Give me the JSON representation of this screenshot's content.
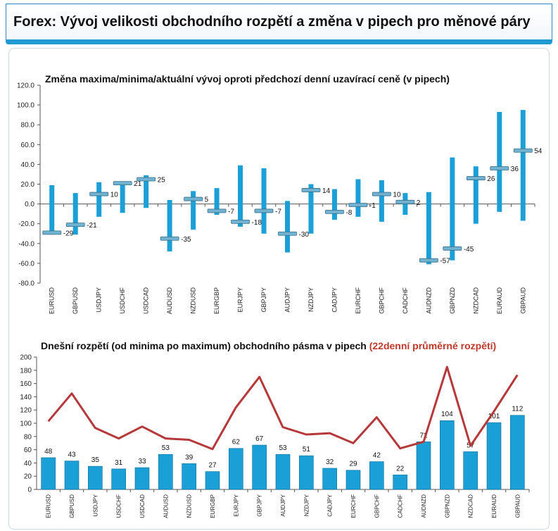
{
  "header": {
    "title": "Forex: Vývoj velikosti obchodního rozpětí a změna v pipech pro měnové páry"
  },
  "colors": {
    "accent": "#1f9bd2",
    "bar": "#1a9fd6",
    "line": "#b5393a"
  },
  "chart_data": [
    {
      "type": "bar",
      "title": "Změna maxima/minima/aktuální vývoj oproti předchozí denní uzavírací ceně (v pipech)",
      "categories": [
        "EURUSD",
        "GBPUSD",
        "USDJPY",
        "USDCHF",
        "USDCAD",
        "AUDUSD",
        "NZDUSD",
        "EURGBP",
        "EURJPY",
        "GBPJPY",
        "AUDJPY",
        "NZDJPY",
        "CADJPY",
        "EURCHF",
        "GBPCHF",
        "CADCHF",
        "AUDNZD",
        "GBPNZD",
        "NZDCAD",
        "EURAUD",
        "GBPAUD"
      ],
      "high": [
        19,
        11,
        22,
        22,
        29,
        4,
        13,
        16,
        39,
        36,
        3,
        20,
        15,
        25,
        24,
        11,
        12,
        47,
        38,
        93,
        95
      ],
      "low": [
        -31,
        -31,
        -13,
        -9,
        -4,
        -48,
        -26,
        -11,
        -23,
        -30,
        -49,
        -30,
        -16,
        -13,
        -18,
        -11,
        -61,
        -57,
        -20,
        -8,
        -17
      ],
      "current": [
        -29,
        -21,
        10,
        21,
        25,
        -35,
        5,
        -7,
        -18,
        -7,
        -30,
        14,
        -8,
        -1,
        10,
        2,
        -57,
        -45,
        26,
        36,
        54
      ],
      "current_labels": [
        "-29",
        "-21",
        "10",
        "21",
        "25",
        "-35",
        "5",
        "-7",
        "-18",
        "-7",
        "-30",
        "14",
        "-8",
        "-1",
        "10",
        "2",
        "-57",
        "-45",
        "26",
        "36",
        "54"
      ],
      "ylim": [
        -80,
        120
      ],
      "yticks": [
        "120.0",
        "100.0",
        "80.0",
        "60.0",
        "40.0",
        "20.0",
        "0.0",
        "-20.0",
        "-40.0",
        "-60.0",
        "-80.0"
      ],
      "grid": false
    },
    {
      "type": "bar",
      "title": "Dnešní rozpětí (od minima po maximum) obchodního pásma v pipech",
      "title_highlight": "(22denní průměrné rozpětí)",
      "categories": [
        "EURUSD",
        "GBPUSD",
        "USDJPY",
        "USDCHF",
        "USDCAD",
        "AUDUSD",
        "NZDUSD",
        "EURGBP",
        "EURJPY",
        "GBPJPY",
        "AUDJPY",
        "NZDJPY",
        "CADJPY",
        "EURCHF",
        "GBPCHF",
        "CADCHF",
        "AUDNZD",
        "GBPNZD",
        "NZDCAD",
        "EURAUD",
        "GBPAUD"
      ],
      "values": [
        48,
        43,
        35,
        31,
        33,
        53,
        39,
        27,
        62,
        67,
        53,
        51,
        32,
        29,
        42,
        22,
        72,
        104,
        57,
        101,
        112
      ],
      "value_labels": [
        "48",
        "43",
        "35",
        "31",
        "33",
        "53",
        "39",
        "27",
        "62",
        "67",
        "53",
        "51",
        "32",
        "29",
        "42",
        "22",
        "72",
        "104",
        "57",
        "101",
        "112"
      ],
      "avg22": [
        103,
        145,
        93,
        77,
        95,
        77,
        75,
        61,
        124,
        170,
        94,
        83,
        85,
        70,
        109,
        62,
        72,
        185,
        66,
        118,
        173
      ],
      "ylim": [
        0,
        200
      ],
      "yticks": [
        "200",
        "180",
        "160",
        "140",
        "120",
        "100",
        "80",
        "60",
        "40",
        "20",
        "0"
      ],
      "grid": false
    }
  ]
}
